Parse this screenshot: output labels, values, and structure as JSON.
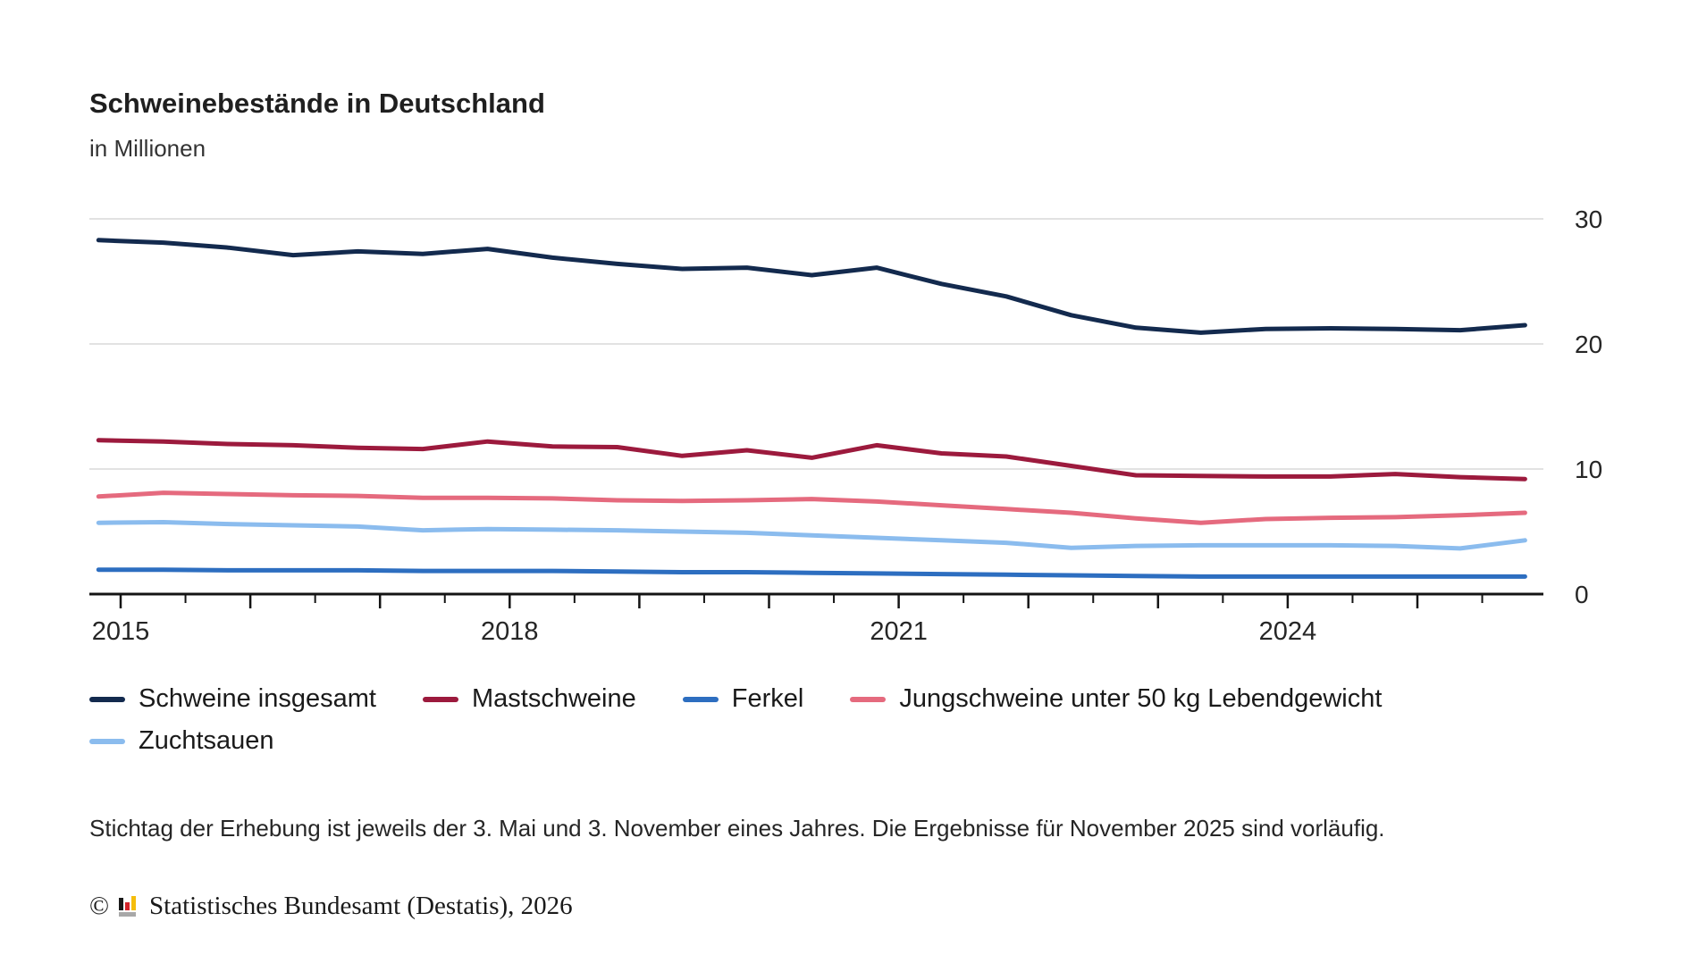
{
  "header": {
    "title": "Schweinebestände in Deutschland",
    "subtitle": "in Millionen"
  },
  "chart_data": {
    "type": "line",
    "title": "Schweinebestände in Deutschland",
    "unit_label": "in Millionen",
    "x_labels": [
      "Nov 2014",
      "Mai 2015",
      "Nov 2015",
      "Mai 2016",
      "Nov 2016",
      "Mai 2017",
      "Nov 2017",
      "Mai 2018",
      "Nov 2018",
      "Mai 2019",
      "Nov 2019",
      "Mai 2020",
      "Nov 2020",
      "Mai 2021",
      "Nov 2021",
      "Mai 2022",
      "Nov 2022",
      "Mai 2023",
      "Nov 2023",
      "Mai 2024",
      "Nov 2024",
      "Mai 2025",
      "Nov 2025"
    ],
    "x_values": [
      2014.83,
      2015.33,
      2015.83,
      2016.33,
      2016.83,
      2017.33,
      2017.83,
      2018.33,
      2018.83,
      2019.33,
      2019.83,
      2020.33,
      2020.83,
      2021.33,
      2021.83,
      2022.33,
      2022.83,
      2023.33,
      2023.83,
      2024.33,
      2024.83,
      2025.33,
      2025.83
    ],
    "series": [
      {
        "name": "Schweine insgesamt",
        "color": "#132a4e",
        "values": [
          28.3,
          28.1,
          27.7,
          27.1,
          27.4,
          27.2,
          27.6,
          26.9,
          26.4,
          26.0,
          26.1,
          25.5,
          26.1,
          24.8,
          23.8,
          22.3,
          21.3,
          20.9,
          21.2,
          21.25,
          21.2,
          21.1,
          21.5
        ]
      },
      {
        "name": "Mastschweine",
        "color": "#9c1a3d",
        "values": [
          12.3,
          12.2,
          12.0,
          11.9,
          11.7,
          11.6,
          12.2,
          11.8,
          11.75,
          11.05,
          11.5,
          10.9,
          11.9,
          11.25,
          11.0,
          10.25,
          9.5,
          9.45,
          9.4,
          9.4,
          9.6,
          9.35,
          9.2
        ]
      },
      {
        "name": "Ferkel",
        "color": "#2d6ec0",
        "values": [
          1.95,
          1.95,
          1.9,
          1.9,
          1.9,
          1.85,
          1.85,
          1.85,
          1.8,
          1.75,
          1.75,
          1.7,
          1.65,
          1.6,
          1.55,
          1.5,
          1.45,
          1.4,
          1.4,
          1.4,
          1.4,
          1.4,
          1.4
        ]
      },
      {
        "name": "Jungschweine unter 50 kg Lebendgewicht",
        "color": "#e56a7e",
        "values": [
          7.8,
          8.1,
          8.0,
          7.9,
          7.85,
          7.7,
          7.7,
          7.65,
          7.5,
          7.45,
          7.5,
          7.6,
          7.4,
          7.1,
          6.8,
          6.5,
          6.05,
          5.7,
          6.0,
          6.1,
          6.15,
          6.3,
          6.5
        ]
      },
      {
        "name": "Zuchtsauen",
        "color": "#8bbcee",
        "values": [
          5.7,
          5.75,
          5.6,
          5.5,
          5.4,
          5.1,
          5.2,
          5.15,
          5.1,
          5.0,
          4.9,
          4.7,
          4.5,
          4.3,
          4.1,
          3.7,
          3.85,
          3.9,
          3.9,
          3.9,
          3.85,
          3.65,
          4.3
        ]
      }
    ],
    "ylim": [
      0,
      30
    ],
    "y_ticks": [
      0,
      10,
      20,
      30
    ],
    "x_tick_labels": [
      2015,
      2018,
      2021,
      2024
    ],
    "x_major_ticks": [
      2015,
      2016,
      2017,
      2018,
      2019,
      2020,
      2021,
      2022,
      2023,
      2024,
      2025
    ],
    "x_minor_ticks": [
      2015.5,
      2016.5,
      2017.5,
      2018.5,
      2019.5,
      2020.5,
      2021.5,
      2022.5,
      2023.5,
      2024.5,
      2025.5
    ],
    "grid": "horizontal-only",
    "legend_position": "bottom",
    "colors": {
      "gridline": "#d8d8d8",
      "axis": "#141414",
      "tick_label": "#262626"
    }
  },
  "legend": {
    "rows": [
      [
        0,
        1,
        2,
        3
      ],
      [
        4
      ]
    ]
  },
  "footnote": {
    "text": "Stichtag der Erhebung ist jeweils der 3. Mai und 3. November eines Jahres. Die Ergebnisse für November 2025 sind vorläufig."
  },
  "source": {
    "copyright": "©",
    "text": "Statistisches Bundesamt (Destatis), 2026",
    "logo": "destatis-bars-logo",
    "logo_colors": {
      "black": "#1a1a1a",
      "red": "#d2232a",
      "gold": "#f5bd0c",
      "grey": "#a8a8a8"
    }
  }
}
